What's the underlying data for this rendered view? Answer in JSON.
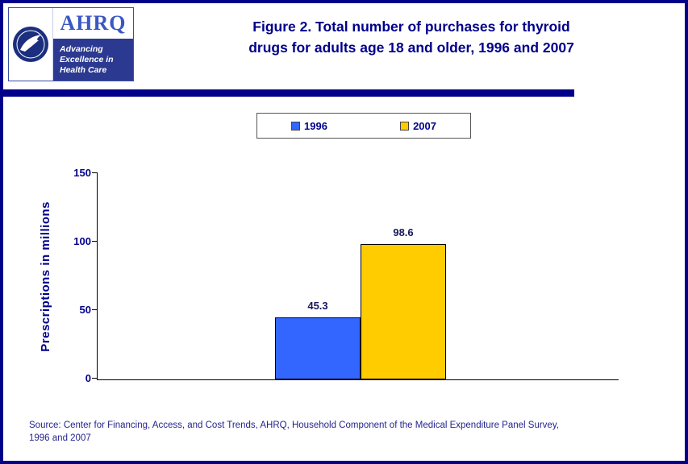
{
  "colors": {
    "accent_navy": "#00008B",
    "bar_1996": "#3366FF",
    "bar_2007": "#FFCC00"
  },
  "header": {
    "title_line1": "Figure 2. Total number of purchases for thyroid",
    "title_line2": "drugs for adults age 18 and older, 1996 and 2007",
    "logo": {
      "org_acronym": "AHRQ",
      "tagline_line1": "Advancing",
      "tagline_line2": "Excellence in",
      "tagline_line3": "Health Care"
    }
  },
  "legend": {
    "items": [
      {
        "label": "1996",
        "color": "#3366FF"
      },
      {
        "label": "2007",
        "color": "#FFCC00"
      }
    ]
  },
  "chart_data": {
    "type": "bar",
    "title": "Figure 2. Total number of purchases for thyroid drugs for adults age 18 and older, 1996 and 2007",
    "categories": [
      "1996",
      "2007"
    ],
    "values": [
      45.3,
      98.6
    ],
    "data_labels": [
      "45.3",
      "98.6"
    ],
    "series_colors": [
      "#3366FF",
      "#FFCC00"
    ],
    "xlabel": "",
    "ylabel": "Prescriptions in millions",
    "ylim": [
      0,
      150
    ],
    "yticks": [
      0,
      50,
      100,
      150
    ],
    "grid": false,
    "legend_position": "top"
  },
  "footer": {
    "source_line1": "Source: Center for Financing, Access, and Cost Trends, AHRQ, Household Component of the Medical Expenditure Panel Survey,",
    "source_line2": "1996 and 2007"
  }
}
